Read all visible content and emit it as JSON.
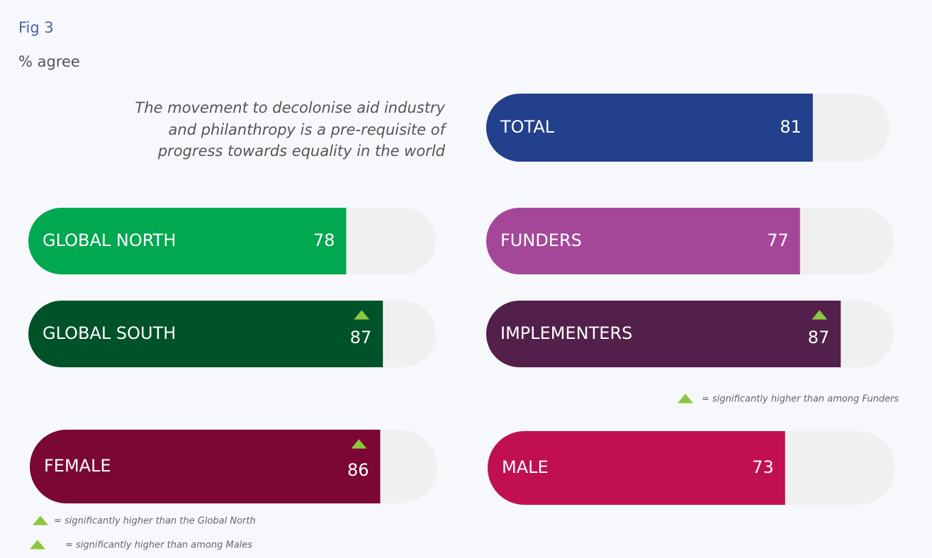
{
  "chart_data": {
    "type": "pill-bar",
    "title": "Fig 3",
    "subtitle": "% agree",
    "statement_lines": [
      "The movement to decolonise aid industry",
      "and philanthropy is a pre-requisite of",
      "progress towards equality in the world"
    ],
    "categories": [
      "TOTAL",
      "GLOBAL NORTH",
      "FUNDERS",
      "GLOBAL SOUTH",
      "IMPLEMENTERS",
      "FEMALE",
      "MALE"
    ],
    "values": [
      81,
      78,
      77,
      87,
      87,
      86,
      73
    ],
    "colors": [
      "#22408c",
      "#00a84f",
      "#a44799",
      "#005229",
      "#52204a",
      "#7a0734",
      "#c0104f"
    ],
    "significant": [
      false,
      false,
      false,
      true,
      true,
      true,
      false
    ],
    "xlim": [
      0,
      100
    ],
    "marker_color": "#8dc63f",
    "notes": [
      "= significantly higher than among Funders",
      "= significantly higher than the Global North",
      "= significantly higher than among Males"
    ]
  }
}
